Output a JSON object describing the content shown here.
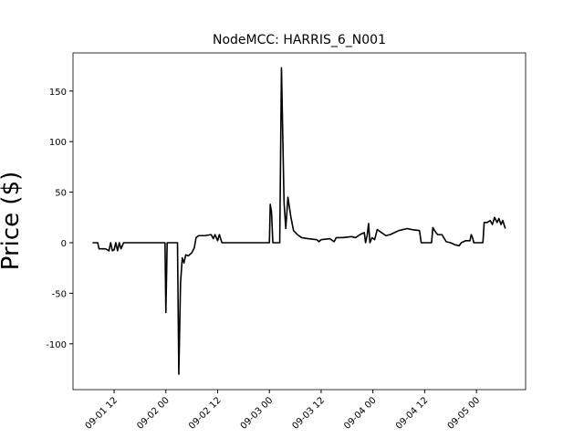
{
  "chart_data": {
    "type": "line",
    "title": "NodeMCC: HARRIS_6_N001",
    "y_label": "Price ($)",
    "x": [
      7,
      8.2,
      8.5,
      10,
      10.8,
      11.2,
      11.6,
      12,
      12.4,
      12.8,
      13.2,
      13.6,
      14.2,
      23.8,
      24,
      24.3,
      26.7,
      27,
      27.4,
      27.8,
      28.2,
      28.6,
      29.2,
      30,
      30.6,
      31,
      31.6,
      33,
      34.5,
      35,
      35.4,
      36,
      36.4,
      37,
      48,
      48.2,
      48.5,
      48.8,
      50.4,
      50.8,
      51.4,
      51.8,
      52.3,
      53,
      53.6,
      54.5,
      55.5,
      57,
      59,
      59.5,
      60,
      62,
      63,
      63.5,
      65,
      67,
      68,
      69,
      70,
      70.3,
      70.7,
      71,
      71.3,
      71.8,
      72.4,
      73,
      74,
      75,
      76,
      78,
      79,
      80,
      81,
      82.8,
      83.2,
      85.6,
      85.9,
      86.3,
      87,
      88,
      89,
      90,
      91,
      92,
      92.5,
      93.5,
      94.5,
      94.8,
      95.1,
      95.4,
      97.5,
      97.8,
      98.5,
      99.2,
      99.7,
      100.2,
      100.8,
      101.2,
      101.7,
      102.1,
      102.7
    ],
    "series": [
      {
        "color": "#000000",
        "values": [
          0,
          0,
          -6,
          -6,
          -8,
          0,
          -8,
          -7,
          0,
          -8,
          0,
          -6,
          0,
          0,
          -69,
          0,
          0,
          -130,
          -40,
          -15,
          -20,
          -12,
          -13,
          -10,
          -5,
          5,
          7,
          7,
          8,
          4,
          8,
          2,
          8,
          0,
          0,
          38,
          30,
          0,
          0,
          173,
          40,
          14,
          45,
          25,
          12,
          8,
          5,
          4,
          3,
          1,
          3,
          4,
          1,
          5,
          5,
          6,
          5,
          8,
          10,
          0,
          8,
          19,
          0,
          5,
          3,
          13,
          10,
          7,
          8,
          12,
          13,
          14,
          13,
          12,
          0,
          0,
          15,
          12,
          8,
          8,
          1,
          0,
          -2,
          -3,
          0,
          2,
          2,
          8,
          5,
          0,
          0,
          20,
          20,
          22,
          18,
          25,
          20,
          24,
          18,
          22,
          14
        ]
      }
    ],
    "xlim": [
      2.47,
      107.4
    ],
    "xticks": [
      {
        "value": 12,
        "label": "09-01 12"
      },
      {
        "value": 24,
        "label": "09-02 00"
      },
      {
        "value": 36,
        "label": "09-02 12"
      },
      {
        "value": 48,
        "label": "09-03 00"
      },
      {
        "value": 60,
        "label": "09-03 12"
      },
      {
        "value": 72,
        "label": "09-04 00"
      },
      {
        "value": 84,
        "label": "09-04 12"
      },
      {
        "value": 96,
        "label": "09-05 00"
      }
    ],
    "ylim": [
      -145.3,
      187.7
    ],
    "yticks": [
      -100,
      -50,
      0,
      50,
      100,
      150
    ],
    "grid": false
  }
}
